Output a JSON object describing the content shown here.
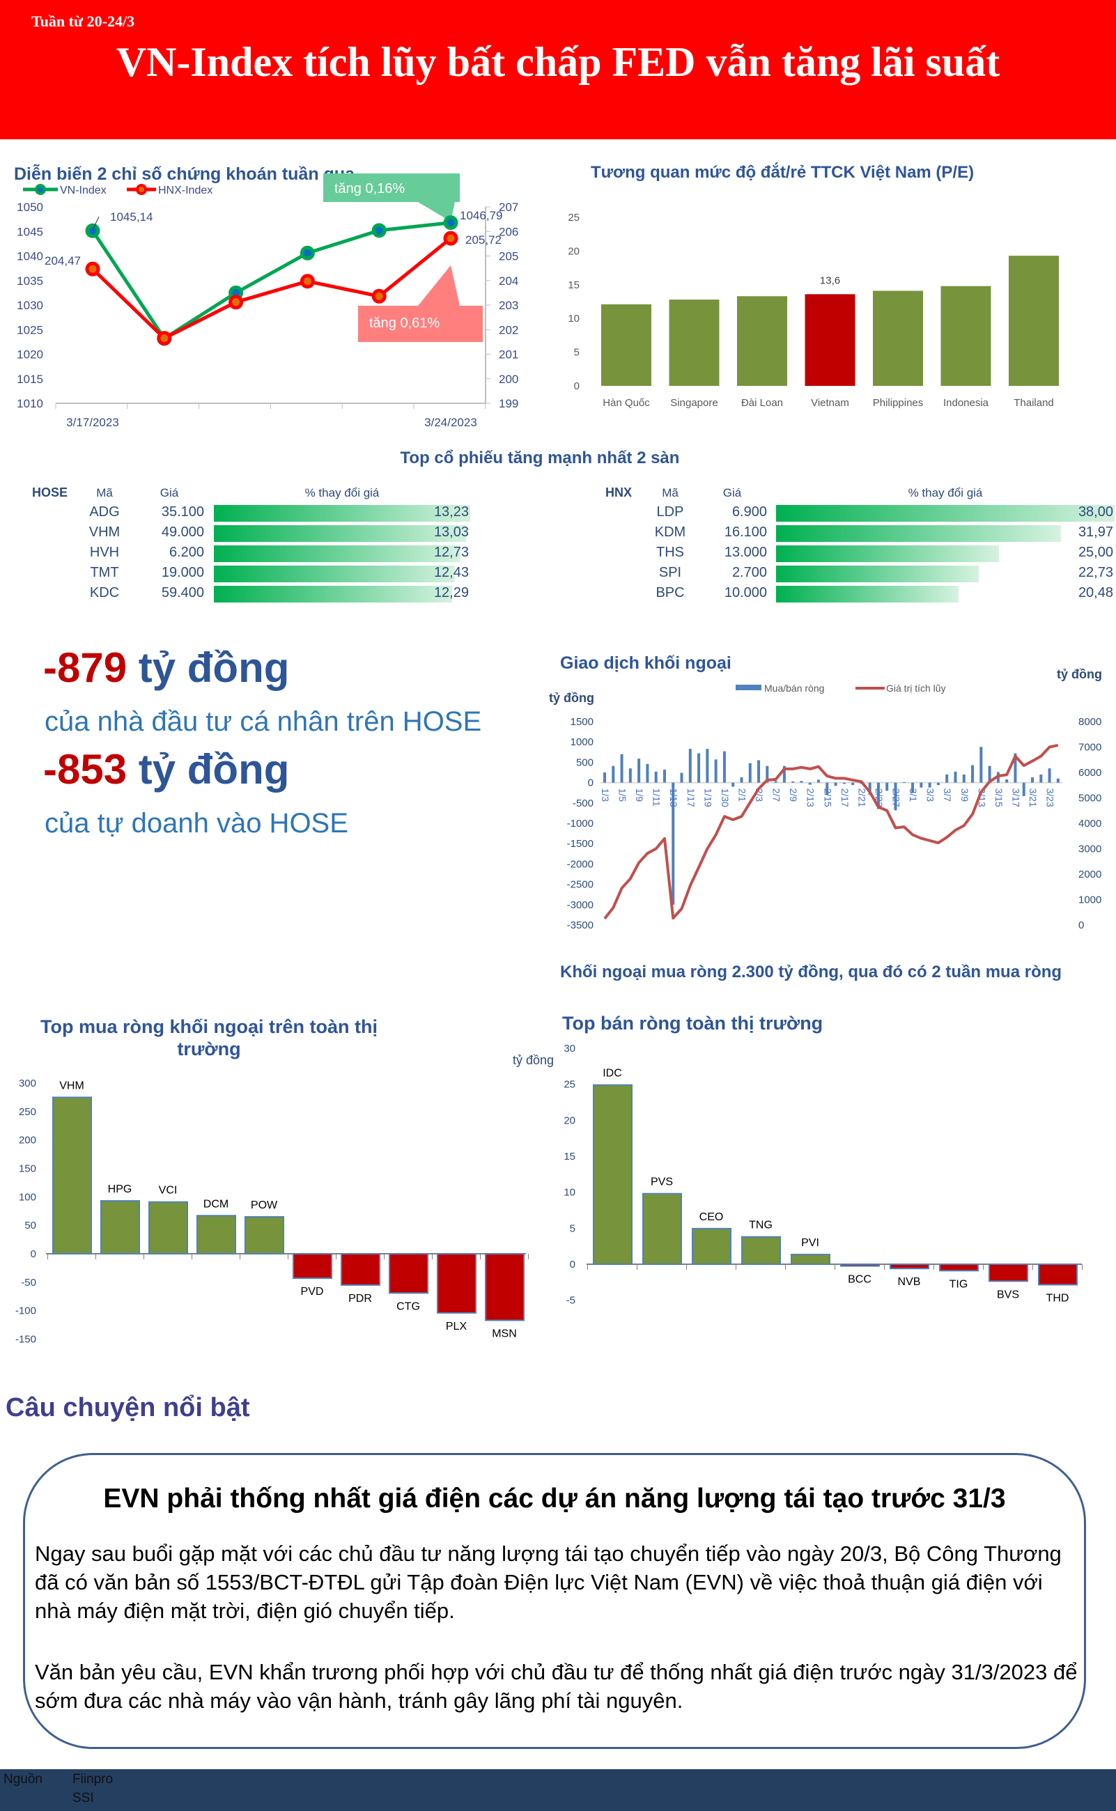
{
  "header": {
    "week": "Tuần từ  20-24/3",
    "title": "VN-Index tích lũy bất chấp FED vẫn tăng lãi suất"
  },
  "colors": {
    "header_bg": "#ff0000",
    "green_bar": "#77933c",
    "red_bar": "#c00000",
    "vn_index": "#00a651",
    "hnx_index": "#ff0000",
    "net_bar": "#4f81bd",
    "cumulative_line": "#c0504d",
    "footer_bg": "#243f60"
  },
  "chart_data": [
    {
      "type": "line",
      "title": "Diễn biến 2 chỉ số chứng khoán tuần qua",
      "x_tick_labels": [
        "3/17/2023",
        "3/24/2023"
      ],
      "ylim": [
        1010,
        1050
      ],
      "y2lim": [
        199,
        207
      ],
      "grid": false,
      "legend": "top-left",
      "series": [
        {
          "name": "VN-Index",
          "axis": "left",
          "values": [
            1045.14,
            1023.2,
            1032.5,
            1040.6,
            1045.2,
            1046.79
          ],
          "labels": [
            "1045,14",
            "",
            "",
            "",
            "",
            "1046,79"
          ]
        },
        {
          "name": "HNX-Index",
          "axis": "right",
          "values": [
            204.47,
            201.65,
            203.12,
            203.97,
            203.36,
            205.72
          ],
          "labels": [
            "204,47",
            "",
            "",
            "",
            "",
            "205,72"
          ]
        }
      ],
      "annotations": [
        "tăng 0,16%",
        "tăng 0,61%"
      ]
    },
    {
      "type": "bar",
      "title": "Tương quan mức độ đắt/rẻ TTCK Việt Nam (P/E)",
      "categories": [
        "Hàn Quốc",
        "Singapore",
        "Đài Loan",
        "Vietnam",
        "Philippines",
        "Indonesia",
        "Thailand"
      ],
      "values": [
        12.1,
        12.8,
        13.3,
        13.6,
        14.1,
        14.8,
        19.3
      ],
      "highlight": "Vietnam",
      "data_label": "13,6",
      "ylim": [
        0,
        25
      ],
      "grid": false
    },
    {
      "type": "bar+line",
      "title": "Giao dịch khối ngoại",
      "ylabel": "tỷ đồng",
      "y2label": "tỷ đồng",
      "ylim": [
        -3500,
        1500
      ],
      "y2lim": [
        0,
        8000
      ],
      "legend": "top",
      "x_tick_labels": [
        "1/3",
        "1/5",
        "1/9",
        "1/11",
        "1/13",
        "1/17",
        "1/19",
        "1/30",
        "2/1",
        "2/3",
        "2/7",
        "2/9",
        "2/13",
        "2/15",
        "2/17",
        "2/21",
        "2/23",
        "2/27",
        "3/1",
        "3/3",
        "3/7",
        "3/9",
        "3/13",
        "3/15",
        "3/17",
        "3/21",
        "3/23"
      ],
      "series": [
        {
          "name": "Mua/bán ròng",
          "type": "bar",
          "values": [
            250,
            410,
            700,
            350,
            590,
            460,
            270,
            320,
            -3000,
            240,
            830,
            720,
            830,
            570,
            770,
            -100,
            130,
            480,
            550,
            410,
            40,
            410,
            30,
            40,
            -50,
            70,
            -300,
            -80,
            -30,
            -60,
            -30,
            -300,
            -650,
            -200,
            -680,
            10,
            -250,
            -120,
            -120,
            -60,
            200,
            270,
            200,
            430,
            880,
            410,
            260,
            80,
            720,
            -330,
            130,
            200,
            350,
            100
          ]
        },
        {
          "name": "Giá trị tích lũy",
          "type": "line",
          "axis": "right",
          "values": [
            250,
            680,
            1450,
            1820,
            2450,
            2820,
            3000,
            3400,
            270,
            640,
            1550,
            2270,
            3000,
            3550,
            4270,
            4140,
            4270,
            4820,
            5360,
            5700,
            5730,
            6140,
            6140,
            6200,
            6140,
            6230,
            5860,
            5770,
            5770,
            5700,
            5640,
            5230,
            4640,
            4500,
            3820,
            3860,
            3550,
            3410,
            3320,
            3230,
            3450,
            3730,
            3910,
            4360,
            5230,
            5640,
            5860,
            5910,
            6640,
            6270,
            6450,
            6640,
            7000,
            7070
          ]
        }
      ],
      "caption": "Khối ngoại mua ròng 2.300 tỷ đồng, qua đó có 2 tuần mua ròng"
    },
    {
      "type": "bar",
      "title": "Top mua ròng khối ngoại trên toàn thị trường",
      "categories": [
        "VHM",
        "HPG",
        "VCI",
        "DCM",
        "POW",
        "PVD",
        "PDR",
        "CTG",
        "PLX",
        "MSN"
      ],
      "values": [
        275,
        93,
        91,
        67,
        65,
        -43,
        -55,
        -69,
        -104,
        -117
      ],
      "ylim": [
        -150,
        300
      ],
      "grid": false
    },
    {
      "type": "bar",
      "title": "Top bán ròng toàn thị trường",
      "ylabel": "tỷ đồng",
      "categories": [
        "IDC",
        "PVS",
        "CEO",
        "TNG",
        "PVI",
        "BCC",
        "NVB",
        "TIG",
        "BVS",
        "THD"
      ],
      "values": [
        24.9,
        9.8,
        4.95,
        3.8,
        1.35,
        -0.25,
        -0.6,
        -0.9,
        -2.35,
        -2.85
      ],
      "ylim": [
        -5,
        30
      ],
      "grid": false
    }
  ],
  "top_stocks": {
    "title": "Top cổ phiếu tăng mạnh nhất 2 sàn",
    "hose": {
      "exchange": "HOSE",
      "headers": {
        "code": "Mã",
        "price": "Giá",
        "change": "% thay đổi giá"
      },
      "rows": [
        {
          "code": "ADG",
          "price": "35.100",
          "change": "13,23",
          "value": 13.23
        },
        {
          "code": "VHM",
          "price": "49.000",
          "change": "13,03",
          "value": 13.03
        },
        {
          "code": "HVH",
          "price": "6.200",
          "change": "12,73",
          "value": 12.73
        },
        {
          "code": "TMT",
          "price": "19.000",
          "change": "12,43",
          "value": 12.43
        },
        {
          "code": "KDC",
          "price": "59.400",
          "change": "12,29",
          "value": 12.29
        }
      ]
    },
    "hnx": {
      "exchange": "HNX",
      "headers": {
        "code": "Mã",
        "price": "Giá",
        "change": "% thay đổi giá"
      },
      "rows": [
        {
          "code": "LDP",
          "price": "6.900",
          "change": "38,00",
          "value": 38.0
        },
        {
          "code": "KDM",
          "price": "16.100",
          "change": "31,97",
          "value": 31.97
        },
        {
          "code": "THS",
          "price": "13.000",
          "change": "25,00",
          "value": 25.0
        },
        {
          "code": "SPI",
          "price": "2.700",
          "change": "22,73",
          "value": 22.73
        },
        {
          "code": "BPC",
          "price": "10.000",
          "change": "20,48",
          "value": 20.48
        }
      ]
    }
  },
  "highlights": [
    {
      "amount": "-879",
      "unit": "tỷ đồng",
      "desc": "của nhà đầu tư cá nhân trên HOSE"
    },
    {
      "amount": "-853",
      "unit": "tỷ đồng",
      "desc": "của tự doanh vào HOSE"
    }
  ],
  "story": {
    "section_title": "Câu chuyện nổi bật",
    "headline": "EVN phải thống nhất giá điện các dự án năng lượng tái tạo trước 31/3",
    "paragraphs": [
      "Ngay sau buổi gặp mặt với các chủ đầu tư năng lượng tái tạo chuyển tiếp vào ngày 20/3, Bộ Công Thương đã có văn bản số 1553/BCT-ĐTĐL gửi Tập đoàn Điện lực Việt Nam (EVN) về việc thoả thuận giá điện với nhà máy điện mặt trời, điện gió chuyển tiếp.",
      "Văn bản yêu cầu, EVN khẩn trương phối hợp với chủ đầu tư để thống nhất giá điện trước ngày 31/3/2023 để sớm đưa các nhà máy vào vận hành, tránh gây lãng phí tài nguyên."
    ]
  },
  "footer": {
    "source_label": "Nguồn",
    "sources": [
      "Fiinpro",
      "SSI"
    ]
  }
}
